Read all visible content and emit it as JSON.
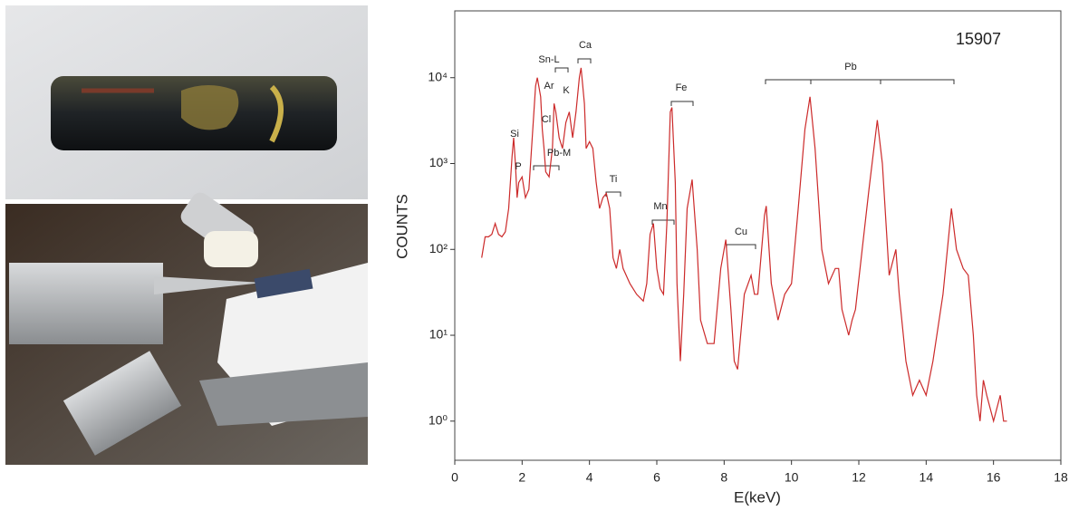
{
  "chart_data": {
    "type": "line",
    "sample_label": "15907",
    "xlabel": "E(keV)",
    "ylabel": "COUNTS",
    "x": [
      0.8,
      0.9,
      1.0,
      1.1,
      1.2,
      1.3,
      1.4,
      1.5,
      1.6,
      1.7,
      1.75,
      1.8,
      1.85,
      1.9,
      2.0,
      2.1,
      2.2,
      2.3,
      2.4,
      2.45,
      2.55,
      2.6,
      2.65,
      2.7,
      2.8,
      2.9,
      2.95,
      3.0,
      3.1,
      3.2,
      3.3,
      3.4,
      3.5,
      3.6,
      3.7,
      3.75,
      3.85,
      3.9,
      4.0,
      4.1,
      4.2,
      4.3,
      4.4,
      4.5,
      4.6,
      4.7,
      4.8,
      4.9,
      5.0,
      5.2,
      5.4,
      5.6,
      5.7,
      5.8,
      5.9,
      6.0,
      6.1,
      6.2,
      6.3,
      6.4,
      6.45,
      6.55,
      6.6,
      6.7,
      6.8,
      6.9,
      7.05,
      7.2,
      7.3,
      7.5,
      7.7,
      7.9,
      8.05,
      8.2,
      8.3,
      8.4,
      8.6,
      8.8,
      8.9,
      9.0,
      9.2,
      9.25,
      9.4,
      9.6,
      9.8,
      10.0,
      10.2,
      10.4,
      10.55,
      10.7,
      10.9,
      11.1,
      11.3,
      11.4,
      11.5,
      11.7,
      11.8,
      11.9,
      12.1,
      12.3,
      12.55,
      12.7,
      12.9,
      13.1,
      13.2,
      13.4,
      13.6,
      13.8,
      14.0,
      14.2,
      14.5,
      14.75,
      14.9,
      15.1,
      15.25,
      15.4,
      15.5,
      15.6,
      15.7,
      15.8,
      16.0,
      16.2,
      16.3,
      16.4
    ],
    "values": [
      80,
      140,
      140,
      150,
      200,
      150,
      140,
      160,
      300,
      1200,
      2000,
      1000,
      400,
      600,
      700,
      400,
      500,
      2000,
      8000,
      10000,
      6000,
      2500,
      1500,
      800,
      700,
      1500,
      5000,
      4000,
      2000,
      1500,
      3000,
      4000,
      2000,
      4000,
      10000,
      13000,
      5000,
      1500,
      1800,
      1500,
      600,
      300,
      400,
      450,
      300,
      80,
      60,
      100,
      60,
      40,
      30,
      25,
      40,
      150,
      200,
      60,
      35,
      30,
      200,
      4000,
      4500,
      600,
      40,
      5,
      30,
      300,
      650,
      100,
      15,
      8,
      8,
      60,
      130,
      20,
      5,
      4,
      30,
      50,
      30,
      30,
      250,
      320,
      40,
      15,
      30,
      40,
      300,
      2500,
      6000,
      1500,
      100,
      40,
      60,
      60,
      20,
      10,
      15,
      20,
      100,
      500,
      3200,
      1000,
      50,
      100,
      30,
      5,
      2,
      3,
      2,
      5,
      30,
      300,
      100,
      60,
      50,
      10,
      2,
      1,
      3,
      2,
      1,
      2,
      1,
      1
    ],
    "color": "#cc2a2a",
    "log_y": true,
    "grid": false,
    "xlim": [
      0,
      18
    ],
    "xticks": [
      0,
      2,
      4,
      6,
      8,
      10,
      12,
      14,
      16,
      18
    ],
    "ylim": [
      0.35,
      60000
    ],
    "yticks": [
      {
        "value": 1,
        "label": "10⁰"
      },
      {
        "value": 10,
        "label": "10¹"
      },
      {
        "value": 100,
        "label": "10²"
      },
      {
        "value": 1000,
        "label": "10³"
      },
      {
        "value": 10000,
        "label": "10⁴"
      }
    ],
    "annotations": [
      "Si",
      "P",
      "Ar",
      "Cl",
      "Sn-L",
      "K",
      "Ca",
      "Pb-M",
      "Ti",
      "Mn",
      "Fe",
      "Cu",
      "Pb"
    ]
  }
}
